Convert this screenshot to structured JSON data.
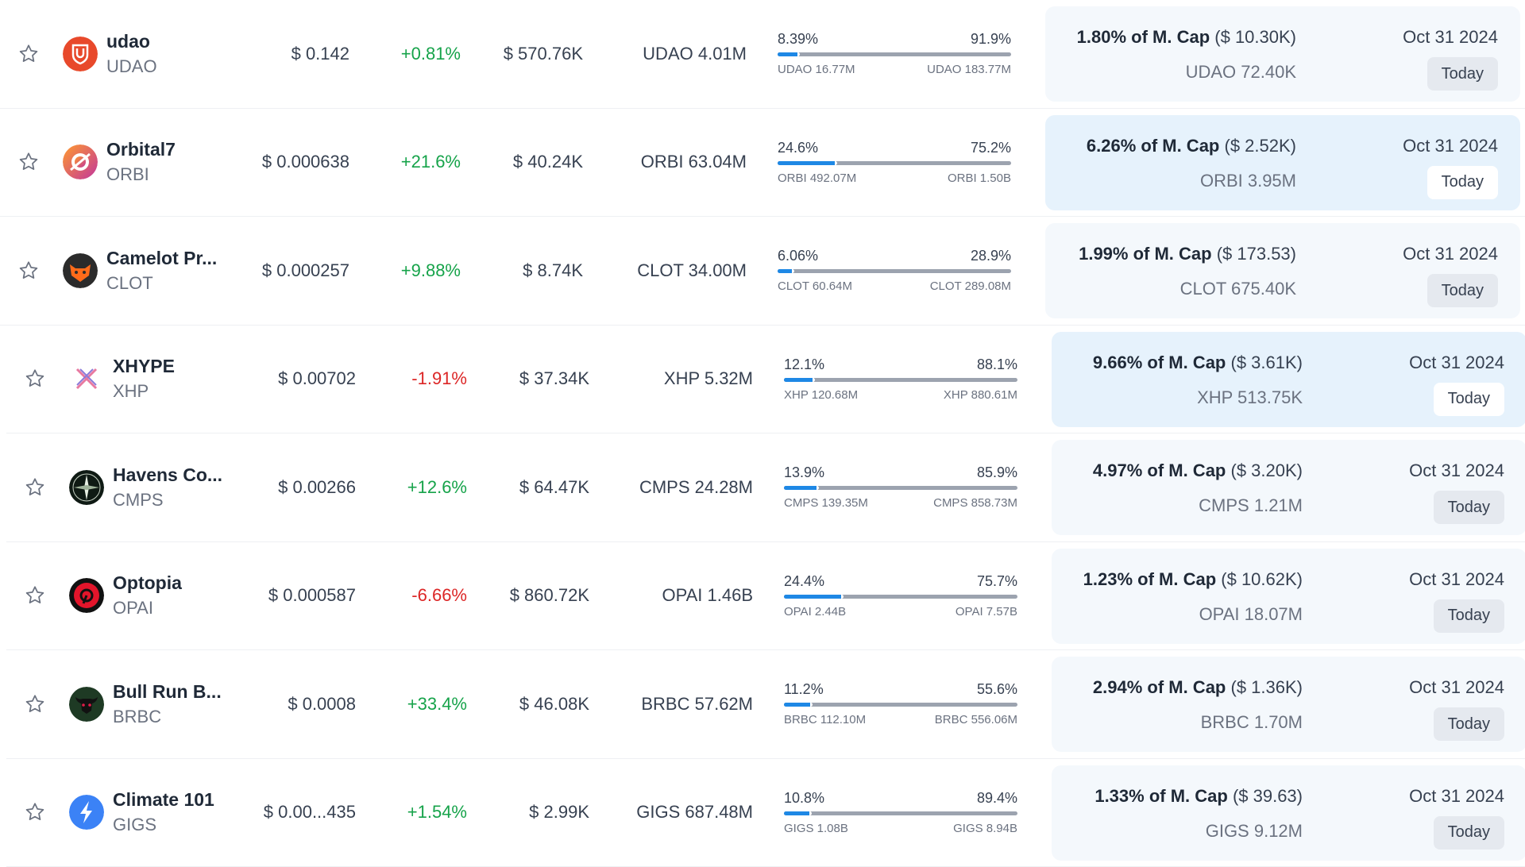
{
  "colors": {
    "up": "#16a34a",
    "down": "#dc2626",
    "accent": "#1e88e5"
  },
  "rows": [
    {
      "name": "udao",
      "symbol": "UDAO",
      "price": "$ 0.142",
      "change": "+0.81%",
      "direction": "up",
      "volume": "$ 570.76K",
      "circ_supply": "UDAO 4.01M",
      "unlocked_pct": "8.39%",
      "locked_pct": "91.9%",
      "unlocked_amt": "UDAO 16.77M",
      "locked_amt": "UDAO 183.77M",
      "unlocked_fraction": 0.0839,
      "next_pct": "1.80% of M. Cap",
      "next_usd": "($ 10.30K)",
      "next_amount": "UDAO 72.40K",
      "next_date": "Oct 31 2024",
      "next_badge": "Today",
      "logo_icon": "udao-shield-logo",
      "highlight": false
    },
    {
      "name": "Orbital7",
      "symbol": "ORBI",
      "price": "$ 0.000638",
      "change": "+21.6%",
      "direction": "up",
      "volume": "$ 40.24K",
      "circ_supply": "ORBI 63.04M",
      "unlocked_pct": "24.6%",
      "locked_pct": "75.2%",
      "unlocked_amt": "ORBI 492.07M",
      "locked_amt": "ORBI 1.50B",
      "unlocked_fraction": 0.246,
      "next_pct": "6.26% of M. Cap",
      "next_usd": "($ 2.52K)",
      "next_amount": "ORBI 3.95M",
      "next_date": "Oct 31 2024",
      "next_badge": "Today",
      "logo_icon": "orbital-ring-logo",
      "highlight": true
    },
    {
      "name": "Camelot Pr...",
      "symbol": "CLOT",
      "price": "$ 0.000257",
      "change": "+9.88%",
      "direction": "up",
      "volume": "$ 8.74K",
      "circ_supply": "CLOT 34.00M",
      "unlocked_pct": "6.06%",
      "locked_pct": "28.9%",
      "unlocked_amt": "CLOT 60.64M",
      "locked_amt": "CLOT 289.08M",
      "unlocked_fraction": 0.0606,
      "next_pct": "1.99% of M. Cap",
      "next_usd": "($ 173.53)",
      "next_amount": "CLOT 675.40K",
      "next_date": "Oct 31 2024",
      "next_badge": "Today",
      "logo_icon": "camelot-fox-logo",
      "highlight": false
    },
    {
      "name": "XHYPE",
      "symbol": "XHP",
      "price": "$ 0.00702",
      "change": "-1.91%",
      "direction": "down",
      "volume": "$ 37.34K",
      "circ_supply": "XHP 5.32M",
      "unlocked_pct": "12.1%",
      "locked_pct": "88.1%",
      "unlocked_amt": "XHP 120.68M",
      "locked_amt": "XHP 880.61M",
      "unlocked_fraction": 0.121,
      "next_pct": "9.66% of M. Cap",
      "next_usd": "($ 3.61K)",
      "next_amount": "XHP 513.75K",
      "next_date": "Oct 31 2024",
      "next_badge": "Today",
      "logo_icon": "xhype-cross-logo",
      "highlight": true
    },
    {
      "name": "Havens Co...",
      "symbol": "CMPS",
      "price": "$ 0.00266",
      "change": "+12.6%",
      "direction": "up",
      "volume": "$ 64.47K",
      "circ_supply": "CMPS 24.28M",
      "unlocked_pct": "13.9%",
      "locked_pct": "85.9%",
      "unlocked_amt": "CMPS 139.35M",
      "locked_amt": "CMPS 858.73M",
      "unlocked_fraction": 0.139,
      "next_pct": "4.97% of M. Cap",
      "next_usd": "($ 3.20K)",
      "next_amount": "CMPS 1.21M",
      "next_date": "Oct 31 2024",
      "next_badge": "Today",
      "logo_icon": "compass-logo",
      "highlight": false
    },
    {
      "name": "Optopia",
      "symbol": "OPAI",
      "price": "$ 0.000587",
      "change": "-6.66%",
      "direction": "down",
      "volume": "$ 860.72K",
      "circ_supply": "OPAI 1.46B",
      "unlocked_pct": "24.4%",
      "locked_pct": "75.7%",
      "unlocked_amt": "OPAI 2.44B",
      "locked_amt": "OPAI 7.57B",
      "unlocked_fraction": 0.244,
      "next_pct": "1.23% of M. Cap",
      "next_usd": "($ 10.62K)",
      "next_amount": "OPAI 18.07M",
      "next_date": "Oct 31 2024",
      "next_badge": "Today",
      "logo_icon": "optopia-logo",
      "highlight": false
    },
    {
      "name": "Bull Run B...",
      "symbol": "BRBC",
      "price": "$ 0.0008",
      "change": "+33.4%",
      "direction": "up",
      "volume": "$ 46.08K",
      "circ_supply": "BRBC 57.62M",
      "unlocked_pct": "11.2%",
      "locked_pct": "55.6%",
      "unlocked_amt": "BRBC 112.10M",
      "locked_amt": "BRBC 556.06M",
      "unlocked_fraction": 0.112,
      "next_pct": "2.94% of M. Cap",
      "next_usd": "($ 1.36K)",
      "next_amount": "BRBC 1.70M",
      "next_date": "Oct 31 2024",
      "next_badge": "Today",
      "logo_icon": "bull-logo",
      "highlight": false
    },
    {
      "name": "Climate 101",
      "symbol": "GIGS",
      "price": "$ 0.00...435",
      "change": "+1.54%",
      "direction": "up",
      "volume": "$ 2.99K",
      "circ_supply": "GIGS 687.48M",
      "unlocked_pct": "10.8%",
      "locked_pct": "89.4%",
      "unlocked_amt": "GIGS 1.08B",
      "locked_amt": "GIGS 8.94B",
      "unlocked_fraction": 0.108,
      "next_pct": "1.33% of M. Cap",
      "next_usd": "($ 39.63)",
      "next_amount": "GIGS 9.12M",
      "next_date": "Oct 31 2024",
      "next_badge": "Today",
      "logo_icon": "lightning-logo",
      "highlight": false
    }
  ]
}
